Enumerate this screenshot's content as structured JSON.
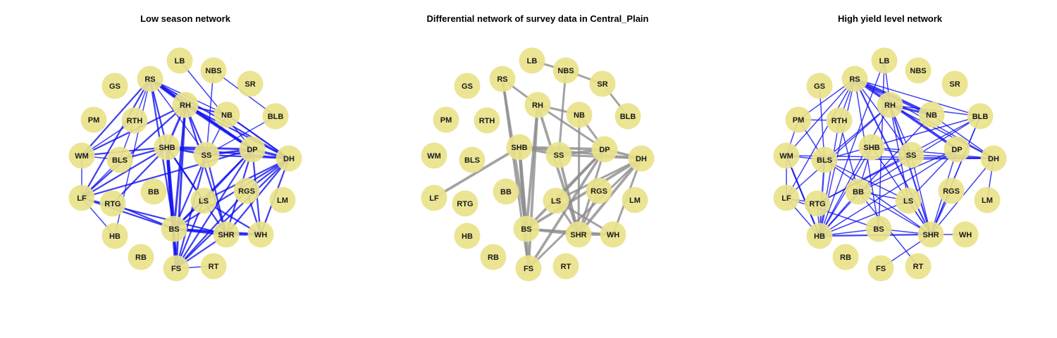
{
  "colors": {
    "node": "#e9e28a",
    "blue_edge": "#1010f0",
    "grey_edge": "#8c8c8c"
  },
  "nodes": [
    {
      "id": "LB"
    },
    {
      "id": "NBS"
    },
    {
      "id": "SR"
    },
    {
      "id": "GS"
    },
    {
      "id": "RS"
    },
    {
      "id": "RH"
    },
    {
      "id": "NB"
    },
    {
      "id": "BLB"
    },
    {
      "id": "PM"
    },
    {
      "id": "RTH"
    },
    {
      "id": "SHB"
    },
    {
      "id": "SS"
    },
    {
      "id": "DP"
    },
    {
      "id": "DH"
    },
    {
      "id": "WM"
    },
    {
      "id": "BLS"
    },
    {
      "id": "BB"
    },
    {
      "id": "RGS"
    },
    {
      "id": "LM"
    },
    {
      "id": "LF"
    },
    {
      "id": "RTG"
    },
    {
      "id": "LS"
    },
    {
      "id": "HB"
    },
    {
      "id": "BS"
    },
    {
      "id": "SHR"
    },
    {
      "id": "WH"
    },
    {
      "id": "RB"
    },
    {
      "id": "FS"
    },
    {
      "id": "RT"
    }
  ],
  "panels": [
    {
      "title": "Low season network",
      "edge_color": "#1010f0",
      "edges": [
        [
          "RS",
          "RH",
          5
        ],
        [
          "RS",
          "DP",
          5
        ],
        [
          "RS",
          "DH",
          3
        ],
        [
          "RS",
          "SHB",
          3
        ],
        [
          "RS",
          "BS",
          3
        ],
        [
          "RS",
          "WM",
          3
        ],
        [
          "RS",
          "LF",
          3
        ],
        [
          "RS",
          "BLS",
          2
        ],
        [
          "RS",
          "NB",
          2
        ],
        [
          "RS",
          "SS",
          2
        ],
        [
          "RS",
          "HB",
          2
        ],
        [
          "LB",
          "DP",
          2
        ],
        [
          "NBS",
          "SS",
          2
        ],
        [
          "NBS",
          "BLB",
          2
        ],
        [
          "RH",
          "DP",
          5
        ],
        [
          "RH",
          "SHB",
          4
        ],
        [
          "RH",
          "FS",
          4
        ],
        [
          "RH",
          "BS",
          4
        ],
        [
          "RH",
          "SHR",
          3
        ],
        [
          "RH",
          "LF",
          3
        ],
        [
          "RH",
          "WM",
          3
        ],
        [
          "RH",
          "DH",
          3
        ],
        [
          "RH",
          "NB",
          3
        ],
        [
          "RH",
          "SS",
          3
        ],
        [
          "SHB",
          "BS",
          6
        ],
        [
          "SHB",
          "FS",
          6
        ],
        [
          "SHB",
          "SS",
          4
        ],
        [
          "SHB",
          "DP",
          4
        ],
        [
          "SHB",
          "DH",
          3
        ],
        [
          "SHB",
          "LS",
          3
        ],
        [
          "SHB",
          "SHR",
          3
        ],
        [
          "SHB",
          "WM",
          3
        ],
        [
          "SHB",
          "LF",
          3
        ],
        [
          "SHB",
          "RTG",
          3
        ],
        [
          "SHB",
          "BLS",
          3
        ],
        [
          "SS",
          "DP",
          4
        ],
        [
          "SS",
          "DH",
          3
        ],
        [
          "SS",
          "SHR",
          3
        ],
        [
          "SS",
          "FS",
          3
        ],
        [
          "SS",
          "BS",
          3
        ],
        [
          "DP",
          "DH",
          5
        ],
        [
          "DP",
          "SHR",
          3
        ],
        [
          "DP",
          "BS",
          3
        ],
        [
          "DP",
          "FS",
          3
        ],
        [
          "DP",
          "LF",
          3
        ],
        [
          "DP",
          "LS",
          3
        ],
        [
          "DP",
          "WH",
          3
        ],
        [
          "DH",
          "SHR",
          3
        ],
        [
          "DH",
          "FS",
          3
        ],
        [
          "DH",
          "BS",
          3
        ],
        [
          "DH",
          "RGS",
          3
        ],
        [
          "DH",
          "LS",
          3
        ],
        [
          "DH",
          "WH",
          3
        ],
        [
          "DH",
          "NB",
          3
        ],
        [
          "LF",
          "BS",
          3
        ],
        [
          "LF",
          "SHR",
          3
        ],
        [
          "LF",
          "WM",
          2
        ],
        [
          "LF",
          "BLS",
          2
        ],
        [
          "BS",
          "SHR",
          5
        ],
        [
          "BS",
          "WH",
          4
        ],
        [
          "BS",
          "FS",
          4
        ],
        [
          "BS",
          "RTG",
          3
        ],
        [
          "BS",
          "LS",
          3
        ],
        [
          "SHR",
          "WH",
          4
        ],
        [
          "SHR",
          "FS",
          3
        ],
        [
          "WH",
          "LS",
          3
        ],
        [
          "WH",
          "RGS",
          3
        ],
        [
          "RGS",
          "FS",
          3
        ],
        [
          "LS",
          "FS",
          3
        ],
        [
          "NB",
          "DH",
          2
        ],
        [
          "NB",
          "SS",
          2
        ],
        [
          "BLS",
          "WM",
          2
        ],
        [
          "RT",
          "FS",
          2
        ],
        [
          "HB",
          "LF",
          2
        ],
        [
          "RTH",
          "WM",
          2
        ],
        [
          "BLB",
          "SS",
          2
        ]
      ]
    },
    {
      "title": "Differential network of survey data in Central_Plain",
      "edge_color": "#8c8c8c",
      "edges": [
        [
          "RS",
          "RH",
          4
        ],
        [
          "RS",
          "BS",
          5
        ],
        [
          "RS",
          "FS",
          4
        ],
        [
          "LB",
          "NBS",
          4
        ],
        [
          "NBS",
          "SR",
          4
        ],
        [
          "NBS",
          "SS",
          4
        ],
        [
          "SR",
          "BLB",
          4
        ],
        [
          "RH",
          "NB",
          4
        ],
        [
          "RH",
          "BS",
          5
        ],
        [
          "RH",
          "FS",
          5
        ],
        [
          "RH",
          "SHR",
          5
        ],
        [
          "RH",
          "DP",
          4
        ],
        [
          "NB",
          "DP",
          4
        ],
        [
          "NB",
          "SHR",
          4
        ],
        [
          "SHB",
          "SS",
          5
        ],
        [
          "SHB",
          "DP",
          5
        ],
        [
          "SHB",
          "DH",
          4
        ],
        [
          "SHB",
          "LF",
          5
        ],
        [
          "SHB",
          "BS",
          6
        ],
        [
          "SHB",
          "FS",
          6
        ],
        [
          "SS",
          "DP",
          5
        ],
        [
          "SS",
          "SHR",
          5
        ],
        [
          "SS",
          "DH",
          4
        ],
        [
          "DP",
          "DH",
          5
        ],
        [
          "DP",
          "BS",
          5
        ],
        [
          "DP",
          "FS",
          5
        ],
        [
          "DP",
          "LS",
          4
        ],
        [
          "DP",
          "SHR",
          4
        ],
        [
          "DH",
          "SHR",
          5
        ],
        [
          "DH",
          "LS",
          4
        ],
        [
          "DH",
          "BS",
          5
        ],
        [
          "DH",
          "FS",
          4
        ],
        [
          "DH",
          "WH",
          4
        ],
        [
          "BS",
          "SHR",
          5
        ],
        [
          "BS",
          "WH",
          4
        ],
        [
          "SHR",
          "WH",
          5
        ],
        [
          "LS",
          "WH",
          4
        ],
        [
          "LS",
          "SHR",
          4
        ],
        [
          "RGS",
          "SHR",
          4
        ]
      ]
    },
    {
      "title": "High yield level network",
      "edge_color": "#1010f0",
      "edges": [
        [
          "RS",
          "NB",
          6
        ],
        [
          "RS",
          "DP",
          5
        ],
        [
          "RS",
          "DH",
          2
        ],
        [
          "RS",
          "SHR",
          3
        ],
        [
          "RS",
          "BS",
          2
        ],
        [
          "RS",
          "HB",
          2
        ],
        [
          "RS",
          "LF",
          2
        ],
        [
          "RS",
          "WM",
          2
        ],
        [
          "RS",
          "PM",
          2
        ],
        [
          "RS",
          "BLB",
          2
        ],
        [
          "RS",
          "SS",
          2
        ],
        [
          "RS",
          "RTH",
          2
        ],
        [
          "LB",
          "RH",
          2
        ],
        [
          "LB",
          "HB",
          2
        ],
        [
          "LB",
          "BS",
          2
        ],
        [
          "RH",
          "NB",
          4
        ],
        [
          "RH",
          "SHR",
          3
        ],
        [
          "RH",
          "BLS",
          2
        ],
        [
          "RH",
          "HB",
          2
        ],
        [
          "RH",
          "LF",
          2
        ],
        [
          "RH",
          "LS",
          2
        ],
        [
          "RH",
          "DH",
          2
        ],
        [
          "RH",
          "BLB",
          2
        ],
        [
          "RH",
          "SS",
          2
        ],
        [
          "PM",
          "RTH",
          2
        ],
        [
          "PM",
          "WM",
          2
        ],
        [
          "PM",
          "BLS",
          2
        ],
        [
          "GS",
          "BLS",
          2
        ],
        [
          "RTH",
          "HB",
          2
        ],
        [
          "RTH",
          "BB",
          2
        ],
        [
          "WM",
          "HB",
          3
        ],
        [
          "WM",
          "LF",
          2
        ],
        [
          "WM",
          "DH",
          2
        ],
        [
          "WM",
          "BLS",
          2
        ],
        [
          "BLS",
          "HB",
          3
        ],
        [
          "BLS",
          "SHR",
          2
        ],
        [
          "BLS",
          "LS",
          2
        ],
        [
          "BLS",
          "BLB",
          2
        ],
        [
          "LF",
          "HB",
          2
        ],
        [
          "LF",
          "RTG",
          2
        ],
        [
          "LF",
          "BS",
          2
        ],
        [
          "HB",
          "SHR",
          3
        ],
        [
          "HB",
          "BS",
          2
        ],
        [
          "HB",
          "BB",
          2
        ],
        [
          "HB",
          "LS",
          2
        ],
        [
          "HB",
          "RTG",
          2
        ],
        [
          "HB",
          "DP",
          2
        ],
        [
          "HB",
          "WM",
          2
        ],
        [
          "SHB",
          "HB",
          2
        ],
        [
          "SHB",
          "SHR",
          2
        ],
        [
          "SHB",
          "DH",
          2
        ],
        [
          "SHB",
          "BB",
          2
        ],
        [
          "SHB",
          "SS",
          2
        ],
        [
          "SS",
          "RTG",
          2
        ],
        [
          "SS",
          "SHR",
          2
        ],
        [
          "SS",
          "DH",
          2
        ],
        [
          "BB",
          "SHR",
          2
        ],
        [
          "BB",
          "LS",
          2
        ],
        [
          "BB",
          "RT",
          2
        ],
        [
          "BS",
          "SHR",
          2
        ],
        [
          "LS",
          "SHR",
          2
        ],
        [
          "LS",
          "DP",
          2
        ],
        [
          "SHR",
          "DH",
          2
        ],
        [
          "SHR",
          "WH",
          2
        ],
        [
          "SHR",
          "FS",
          2
        ],
        [
          "SHR",
          "BLB",
          2
        ],
        [
          "SHR",
          "DP",
          2
        ],
        [
          "SHR",
          "RGS",
          2
        ],
        [
          "DH",
          "LM",
          2
        ],
        [
          "DH",
          "BLS",
          2
        ],
        [
          "DP",
          "BB",
          2
        ],
        [
          "NB",
          "HB",
          2
        ],
        [
          "NB",
          "DH",
          2
        ],
        [
          "BLB",
          "BB",
          2
        ],
        [
          "BLB",
          "RTG",
          2
        ],
        [
          "BLB",
          "SHR",
          2
        ]
      ]
    }
  ]
}
